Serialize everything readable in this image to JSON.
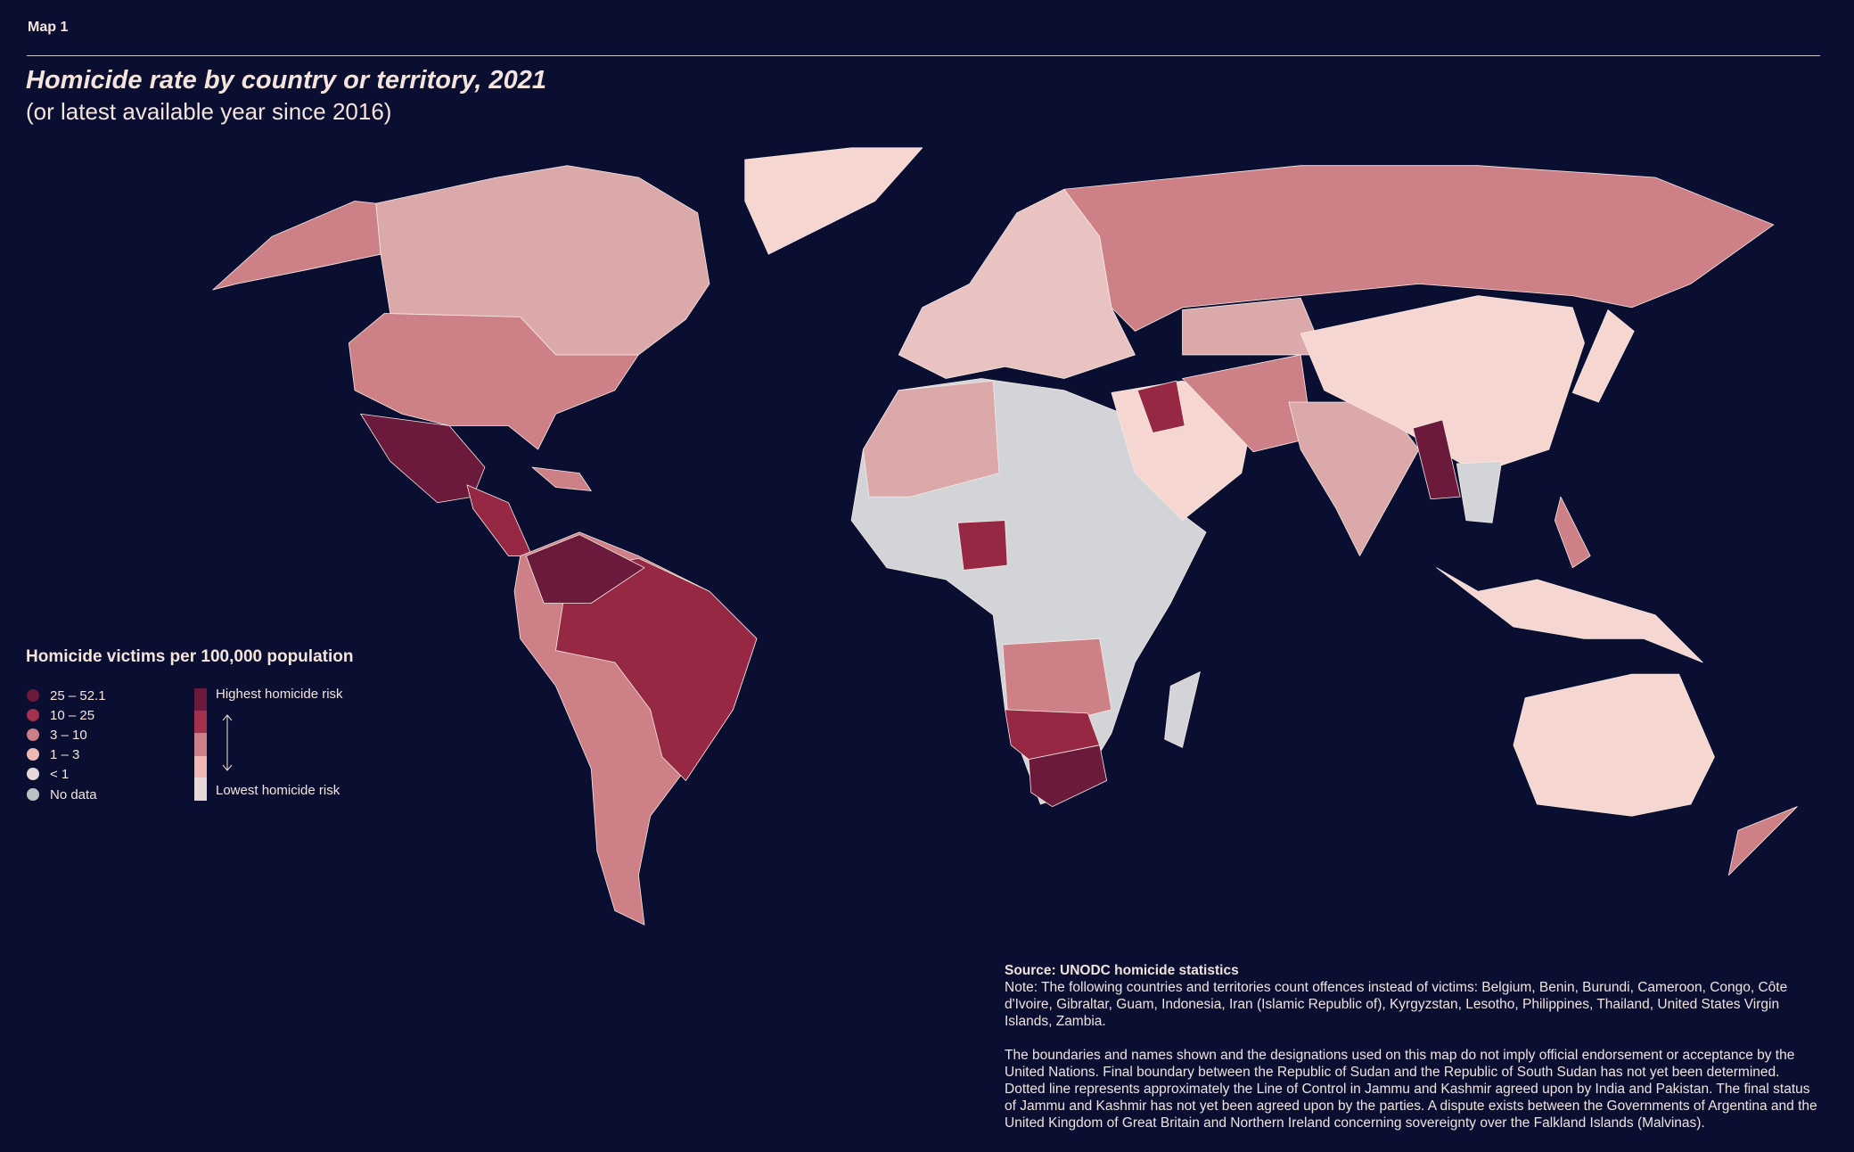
{
  "header": {
    "map_label": "Map 1",
    "title": "Homicide rate by country or territory, 2021",
    "subtitle": "(or latest available year since 2016)"
  },
  "legend": {
    "title": "Homicide victims per 100,000 population",
    "items": [
      {
        "label": "25 – 52.1",
        "color": "#6b1a3c"
      },
      {
        "label": "10 – 25",
        "color": "#a3304c"
      },
      {
        "label": "3 – 10",
        "color": "#cc7f86"
      },
      {
        "label": "1 – 3",
        "color": "#f0b8b4"
      },
      {
        "label": "< 1",
        "color": "#e6d8d8"
      },
      {
        "label": "No data",
        "color": "#bcc2c4"
      }
    ],
    "scale_high": "Highest homicide risk",
    "scale_low": "Lowest homicide risk"
  },
  "notes": {
    "source": "Source: UNODC homicide statistics",
    "note": "Note: The following countries and territories count offences instead of victims: Belgium, Benin, Burundi, Cameroon, Congo, Côte d'Ivoire, Gibraltar, Guam, Indonesia, Iran (Islamic Republic of), Kyrgyzstan, Lesotho, Philippines, Thailand, United States Virgin Islands, Zambia.",
    "disclaimer": "The boundaries and names shown and the designations used on this map do not imply official endorsement or acceptance by the United Nations. Final boundary between the Republic of Sudan and the Republic of South Sudan has not yet been determined. Dotted line represents approximately the Line of Control in Jammu and Kashmir agreed upon by India and Pakistan. The final status of Jammu and Kashmir has not yet been agreed upon by the parties. A dispute exists between the Governments of Argentina and the United Kingdom of Great Britain and Northern Ireland concerning sovereignty over the Falkland Islands (Malvinas)."
  },
  "colors": {
    "background": "#0a0e31",
    "very_high": "#6b1a3c",
    "high": "#962843",
    "medium": "#cd8086",
    "low": "#dba9aa",
    "very_low": "#f6d6d1",
    "no_data": "#d3d4d7"
  }
}
